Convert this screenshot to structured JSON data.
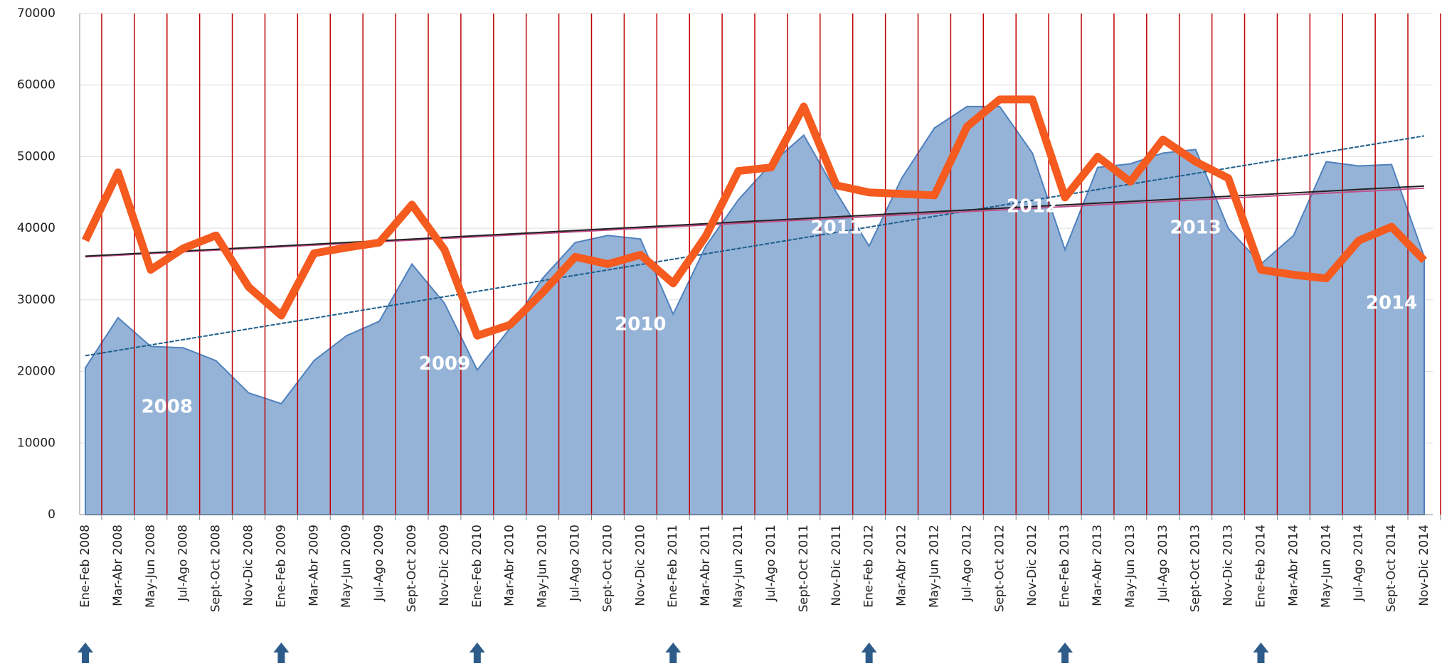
{
  "chart_data": {
    "type": "area-line",
    "categories": [
      "Ene-Feb 2008",
      "Mar-Abr 2008",
      "May-Jun 2008",
      "Jul-Ago 2008",
      "Sept-Oct 2008",
      "Nov-Dic 2008",
      "Ene-Feb 2009",
      "Mar-Abr 2009",
      "May-Jun 2009",
      "Jul-Ago 2009",
      "Sept-Oct 2009",
      "Nov-Dic 2009",
      "Ene-Feb 2010",
      "Mar-Abr 2010",
      "May-Jun 2010",
      "Jul-Ago 2010",
      "Sept-Oct 2010",
      "Nov-Dic 2010",
      "Ene-Feb 2011",
      "Mar-Abr 2011",
      "May-Jun 2011",
      "Jul-Ago 2011",
      "Sept-Oct 2011",
      "Nov-Dic 2011",
      "Ene-Feb 2012",
      "Mar-Abr 2012",
      "May-Jun 2012",
      "Jul-Ago 2012",
      "Sept-Oct 2012",
      "Nov-Dic 2012",
      "Ene-Feb 2013",
      "Mar-Abr 2013",
      "May-Jun 2013",
      "Jul-Ago 2013",
      "Sept-Oct 2013",
      "Nov-Dic 2013",
      "Ene-Feb 2014",
      "Mar-Abr 2014",
      "May-Jun 2014",
      "Jul-Ago 2014",
      "Sept-Oct 2014",
      "Nov-Dic 2014"
    ],
    "series": [
      {
        "type": "area",
        "color": "#95b3d7",
        "stroke": "#4f81bd",
        "values": [
          20500,
          27500,
          23500,
          23300,
          21500,
          17000,
          15500,
          21500,
          25000,
          27000,
          35000,
          29500,
          20200,
          26000,
          33000,
          38000,
          39000,
          38500,
          28000,
          37500,
          44000,
          49000,
          53000,
          45000,
          37500,
          47000,
          54000,
          57000,
          57000,
          50500,
          37000,
          48500,
          49000,
          50500,
          51000,
          40000,
          35000,
          39000,
          49300,
          48700,
          48900,
          36000
        ]
      },
      {
        "type": "line",
        "color": "#f55a1f",
        "values": [
          38300,
          47800,
          34200,
          37200,
          39000,
          31800,
          27800,
          36500,
          37300,
          38000,
          43300,
          37000,
          25000,
          26500,
          31000,
          36000,
          35000,
          36300,
          32300,
          38900,
          48000,
          48500,
          57000,
          46000,
          45000,
          44800,
          44600,
          54200,
          58000,
          58000,
          44300,
          50000,
          46500,
          52400,
          49300,
          47000,
          34200,
          33500,
          33000,
          38300,
          40200,
          35500
        ]
      }
    ],
    "trendlines": [
      {
        "color": "#1f5f8b",
        "values": [
          22200,
          52900
        ]
      },
      {
        "color": "#c0508c",
        "values": [
          36000,
          45600
        ]
      },
      {
        "color": "#222222",
        "values": [
          36100,
          45900
        ]
      }
    ],
    "annotations": [
      "2008",
      "2009",
      "2010",
      "2011",
      "2012",
      "2013",
      "2014"
    ],
    "ylim": [
      0,
      70000
    ],
    "yticks": [
      0,
      10000,
      20000,
      30000,
      40000,
      50000,
      60000,
      70000
    ],
    "grid": true,
    "separator_color": "#c00000"
  }
}
